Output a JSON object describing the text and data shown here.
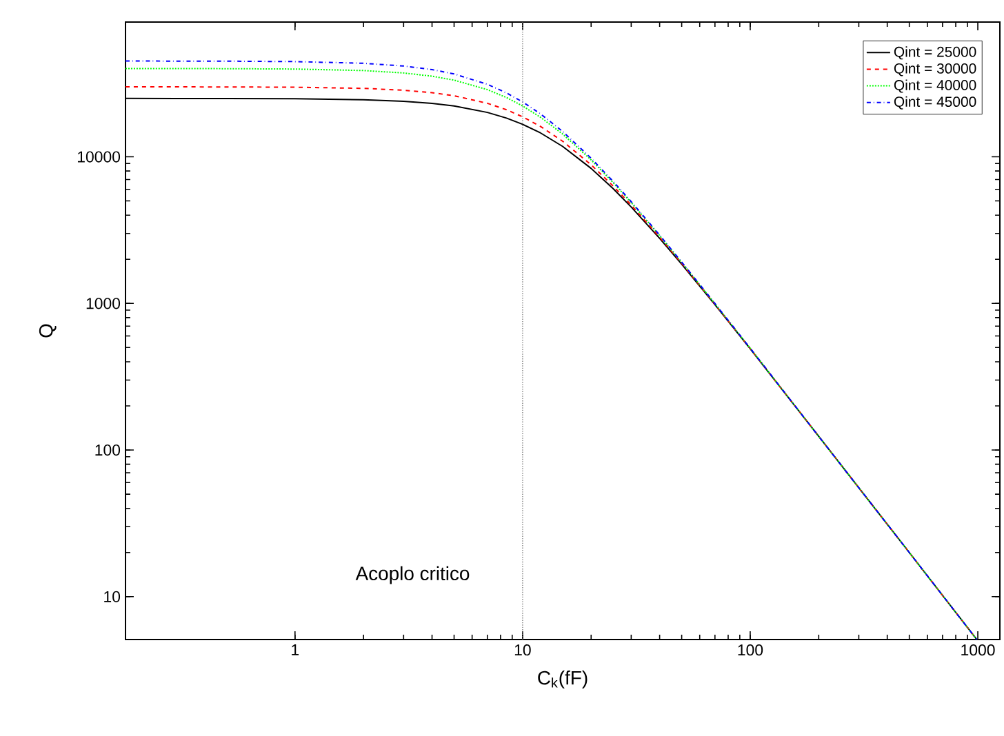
{
  "chart_data": {
    "type": "line",
    "xlabel": "C$_{k}$(fF)",
    "ylabel": "Q",
    "log": "xy",
    "grid": false,
    "legend": "top right",
    "marker": "none",
    "x": [
      0.18,
      0.5,
      1,
      2,
      3,
      4,
      5,
      7,
      8.5,
      10,
      12,
      15,
      20,
      25,
      30,
      40,
      50,
      70,
      100,
      200,
      500,
      990
    ],
    "xlim": [
      0.18,
      1250
    ],
    "ylim": [
      5.1,
      83000
    ],
    "xticks": [
      1,
      10,
      100,
      1000
    ],
    "yticks": [
      10,
      100,
      1000,
      10000
    ],
    "series": [
      {
        "name": "Qint = 25000",
        "color": "#000000",
        "line_style": "solid",
        "values": [
          25000,
          24970,
          24876,
          24510,
          23923,
          23148,
          22222,
          20080,
          18365,
          16667,
          14535,
          11765,
          8333,
          6061,
          4545,
          2778,
          1852,
          980,
          490,
          124,
          20,
          5.1
        ]
      },
      {
        "name": "Qint = 30000",
        "color": "#ff0000",
        "line_style": "dashed",
        "values": [
          30000,
          29955,
          29821,
          29297,
          28463,
          27372,
          26087,
          23184,
          20928,
          18750,
          16094,
          12766,
          8824,
          6316,
          4688,
          2830,
          1875,
          987,
          492,
          124,
          20,
          5.1
        ]
      },
      {
        "name": "Qint = 40000",
        "color": "#00ff00",
        "line_style": "dotted",
        "values": [
          40000,
          39920,
          39683,
          38760,
          37313,
          35461,
          33333,
          28736,
          25349,
          22222,
          18587,
          14286,
          9524,
          6667,
          4878,
          2899,
          1905,
          995,
          494,
          124,
          20,
          5.1
        ]
      },
      {
        "name": "Qint = 45000",
        "color": "#0000ff",
        "line_style": "dashdot",
        "values": [
          45000,
          44900,
          44599,
          43436,
          41628,
          39336,
          36735,
          31229,
          27268,
          23684,
          19599,
          14876,
          9783,
          6792,
          4945,
          2922,
          1915,
          998,
          495,
          124,
          20,
          5.1
        ]
      }
    ],
    "ref_lines": [
      {
        "axis": "x",
        "value": 10,
        "label": "Acoplo critico",
        "color": "#808080",
        "line_style": "dotted"
      }
    ]
  }
}
